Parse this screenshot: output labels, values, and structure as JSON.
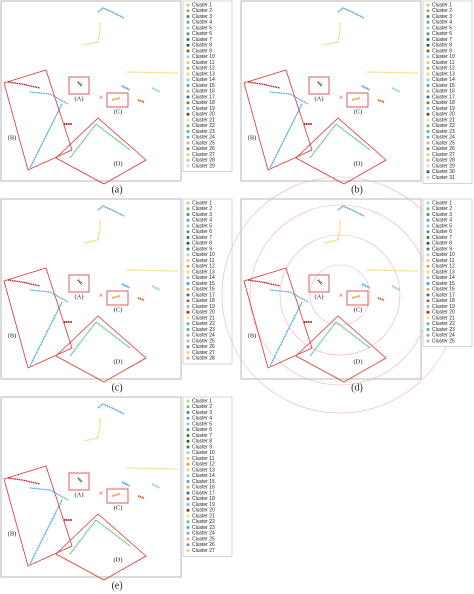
{
  "panels": [
    {
      "caption": "(a)",
      "region_labels": [
        "(A)",
        "(B)",
        "(C)",
        "(D)"
      ],
      "cross": "×",
      "rings": false,
      "legend": [
        "Cluster 1",
        "Cluster 2",
        "Cluster 3",
        "Cluster 4",
        "Cluster 5",
        "Cluster 6",
        "Cluster 7",
        "Cluster 8",
        "Cluster 9",
        "Cluster 10",
        "Cluster 11",
        "Cluster 12",
        "Cluster 13",
        "Cluster 14",
        "Cluster 15",
        "Cluster 16",
        "Cluster 17",
        "Cluster 18",
        "Cluster 19",
        "Cluster 20",
        "Cluster 21",
        "Cluster 22",
        "Cluster 23",
        "Cluster 24",
        "Cluster 25",
        "Cluster 26",
        "Cluster 27",
        "Cluster 28",
        "Cluster 29"
      ]
    },
    {
      "caption": "(b)",
      "region_labels": [
        "(A)",
        "(B)",
        "(C)",
        "(D)"
      ],
      "cross": "×",
      "rings": false,
      "legend": [
        "Cluster 1",
        "Cluster 2",
        "Cluster 3",
        "Cluster 4",
        "Cluster 5",
        "Cluster 6",
        "Cluster 7",
        "Cluster 8",
        "Cluster 9",
        "Cluster 10",
        "Cluster 11",
        "Cluster 12",
        "Cluster 13",
        "Cluster 14",
        "Cluster 15",
        "Cluster 16",
        "Cluster 17",
        "Cluster 18",
        "Cluster 19",
        "Cluster 20",
        "Cluster 21",
        "Cluster 22",
        "Cluster 23",
        "Cluster 24",
        "Cluster 25",
        "Cluster 26",
        "Cluster 27",
        "Cluster 28",
        "Cluster 29",
        "Cluster 30",
        "Cluster 31"
      ]
    },
    {
      "caption": "(c)",
      "region_labels": [
        "(A)",
        "(B)",
        "(C)",
        "(D)"
      ],
      "cross": "×",
      "rings": false,
      "legend": [
        "Cluster 1",
        "Cluster 2",
        "Cluster 3",
        "Cluster 4",
        "Cluster 5",
        "Cluster 6",
        "Cluster 7",
        "Cluster 8",
        "Cluster 9",
        "Cluster 10",
        "Cluster 11",
        "Cluster 12",
        "Cluster 13",
        "Cluster 14",
        "Cluster 15",
        "Cluster 16",
        "Cluster 17",
        "Cluster 18",
        "Cluster 19",
        "Cluster 20",
        "Cluster 21",
        "Cluster 22",
        "Cluster 23",
        "Cluster 24",
        "Cluster 25",
        "Cluster 26",
        "Cluster 27",
        "Cluster 28"
      ]
    },
    {
      "caption": "(d)",
      "region_labels": [
        "(A)",
        "(B)",
        "(C)",
        "(D)"
      ],
      "cross": "×",
      "rings": true,
      "legend": [
        "Cluster 1",
        "Cluster 2",
        "Cluster 3",
        "Cluster 4",
        "Cluster 5",
        "Cluster 6",
        "Cluster 7",
        "Cluster 8",
        "Cluster 9",
        "Cluster 10",
        "Cluster 11",
        "Cluster 12",
        "Cluster 13",
        "Cluster 14",
        "Cluster 15",
        "Cluster 16",
        "Cluster 17",
        "Cluster 18",
        "Cluster 19",
        "Cluster 20",
        "Cluster 21",
        "Cluster 22",
        "Cluster 23",
        "Cluster 24",
        "Cluster 25"
      ]
    },
    {
      "caption": "(e)",
      "region_labels": [
        "(A)",
        "(B)",
        "(C)",
        "(D)"
      ],
      "cross": "×",
      "rings": false,
      "legend": [
        "Cluster 1",
        "Cluster 2",
        "Cluster 3",
        "Cluster 4",
        "Cluster 5",
        "Cluster 6",
        "Cluster 7",
        "Cluster 8",
        "Cluster 9",
        "Cluster 10",
        "Cluster 11",
        "Cluster 12",
        "Cluster 13",
        "Cluster 14",
        "Cluster 15",
        "Cluster 16",
        "Cluster 17",
        "Cluster 18",
        "Cluster 19",
        "Cluster 20",
        "Cluster 21",
        "Cluster 22",
        "Cluster 23",
        "Cluster 24",
        "Cluster 25",
        "Cluster 26",
        "Cluster 27"
      ]
    }
  ],
  "marker_colors": [
    "#9be37d",
    "#6fbf73",
    "#3f8f5a",
    "#5aa0d8",
    "#86c6e8",
    "#4a9a6a",
    "#2f7d4f",
    "#1f5e3a",
    "#4d7f3a",
    "#93d6f0",
    "#f5c26b",
    "#e89b3a",
    "#f3d36b",
    "#8ad0e0",
    "#3da5d8",
    "#f0a04b",
    "#2a6fb0",
    "#c85a2a",
    "#7ab8e0",
    "#b01f24",
    "#f2e07a",
    "#5dc08a",
    "#4bb5a0",
    "#7fa7d6",
    "#e0b070",
    "#6a8fc8",
    "#f6d05a",
    "#f4a6a6",
    "#f8c7c7",
    "#2d4fa0",
    "#f7b6a6"
  ]
}
